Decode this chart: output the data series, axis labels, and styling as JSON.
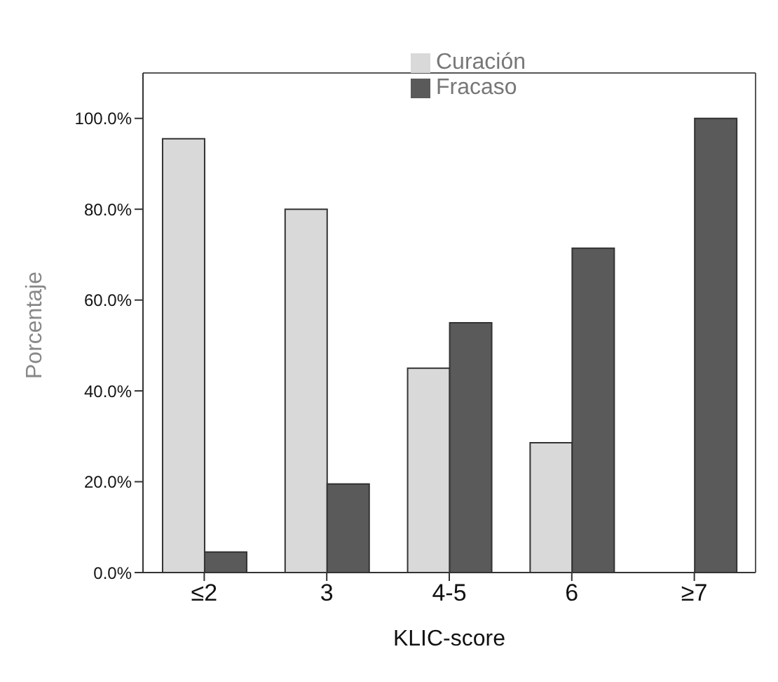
{
  "chart_data": {
    "type": "bar",
    "xlabel": "KLIC-score",
    "ylabel": "Porcentaje",
    "categories": [
      "≤2",
      "3",
      "4-5",
      "6",
      "≥7"
    ],
    "series": [
      {
        "name": "Curación",
        "color": "#d9d9d9",
        "values": [
          95.5,
          80,
          45,
          28.6,
          0
        ]
      },
      {
        "name": "Fracaso",
        "color": "#5a5a5a",
        "values": [
          4.5,
          19.5,
          55,
          71.4,
          100
        ]
      }
    ],
    "ylim": [
      0,
      110
    ],
    "yticks": [
      {
        "value": 0,
        "label": "0.0%"
      },
      {
        "value": 20,
        "label": "20.0%"
      },
      {
        "value": 40,
        "label": "40.0%"
      },
      {
        "value": 60,
        "label": "60.0%"
      },
      {
        "value": 80,
        "label": "80.0%"
      },
      {
        "value": 100,
        "label": "100.0%"
      }
    ],
    "grid": false,
    "legend": "top"
  }
}
